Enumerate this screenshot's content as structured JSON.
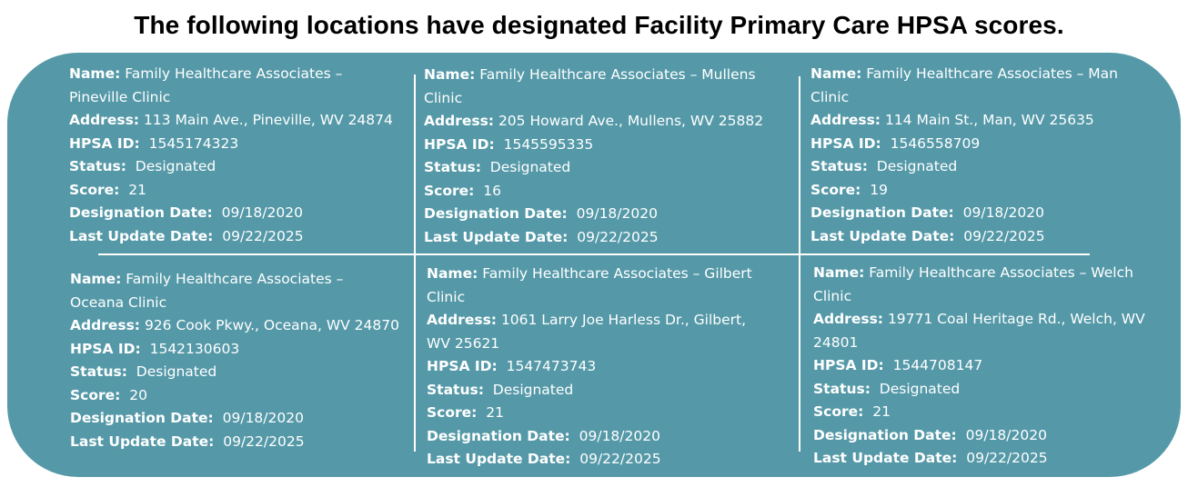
{
  "heading": "The following locations have designated Facility Primary Care HPSA scores.",
  "colors": {
    "panel": "#5599a8",
    "text": "#ffffff",
    "heading": "#000000"
  },
  "labels": {
    "name": "Name:",
    "address": "Address:",
    "hpsa_id": "HPSA ID:",
    "status": "Status:",
    "score": "Score:",
    "designation_date": "Designation Date:",
    "last_update_date": "Last Update Date:"
  },
  "locations": [
    {
      "name_line1": "Family Healthcare Associates –",
      "name_line2": "Pineville Clinic",
      "address_line1": "113 Main Ave., Pineville, WV 24874",
      "address_line2": "",
      "hpsa_id": "1545174323",
      "status": "Designated",
      "score": "21",
      "designation_date": "09/18/2020",
      "last_update_date": "09/22/2025"
    },
    {
      "name_line1": "Family Healthcare Associates – Mullens",
      "name_line2": "Clinic",
      "address_line1": "205 Howard Ave., Mullens, WV 25882",
      "address_line2": "",
      "hpsa_id": "1545595335",
      "status": "Designated",
      "score": "16",
      "designation_date": "09/18/2020",
      "last_update_date": "09/22/2025"
    },
    {
      "name_line1": "Family Healthcare Associates – Man",
      "name_line2": "Clinic",
      "address_line1": "114 Main St., Man, WV 25635",
      "address_line2": "",
      "hpsa_id": "1546558709",
      "status": "Designated",
      "score": "19",
      "designation_date": "09/18/2020",
      "last_update_date": "09/22/2025"
    },
    {
      "name_line1": "Family Healthcare Associates –",
      "name_line2": "Oceana Clinic",
      "address_line1": "926 Cook Pkwy., Oceana, WV 24870",
      "address_line2": "",
      "hpsa_id": "1542130603",
      "status": "Designated",
      "score": "20",
      "designation_date": "09/18/2020",
      "last_update_date": "09/22/2025"
    },
    {
      "name_line1": "Family Healthcare Associates – Gilbert",
      "name_line2": "Clinic",
      "address_line1": "1061 Larry Joe Harless Dr., Gilbert,",
      "address_line2": "WV 25621",
      "hpsa_id": "1547473743",
      "status": "Designated",
      "score": "21",
      "designation_date": "09/18/2020",
      "last_update_date": "09/22/2025"
    },
    {
      "name_line1": "Family Healthcare Associates – Welch",
      "name_line2": "Clinic",
      "address_line1": "19771 Coal Heritage Rd., Welch, WV",
      "address_line2": "24801",
      "hpsa_id": "1544708147",
      "status": "Designated",
      "score": "21",
      "designation_date": "09/18/2020",
      "last_update_date": "09/22/2025"
    }
  ]
}
